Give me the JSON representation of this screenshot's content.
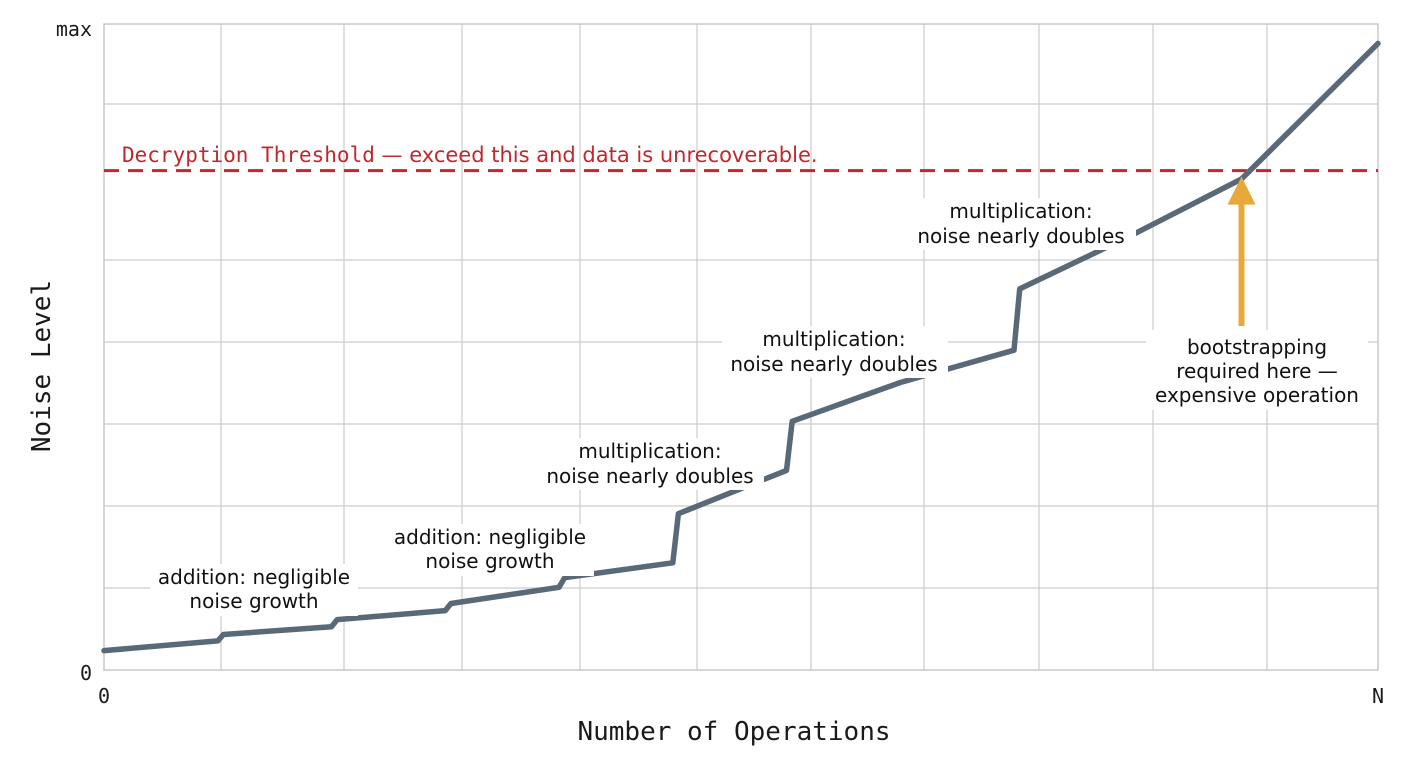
{
  "chart_data": {
    "type": "line",
    "xlabel": "Number of Operations",
    "ylabel": "Noise Level",
    "x_tick_labels": {
      "start": "0",
      "end": "N"
    },
    "y_tick_labels": {
      "bottom": "0",
      "top": "max"
    },
    "xlim": [
      0,
      11.2
    ],
    "ylim": [
      0,
      100
    ],
    "grid": true,
    "series": [
      {
        "color": "#5a6978",
        "points": [
          [
            0,
            3
          ],
          [
            1.0,
            4.5
          ],
          [
            1.05,
            5.5
          ],
          [
            2.0,
            6.7
          ],
          [
            2.05,
            7.8
          ],
          [
            3.0,
            9.2
          ],
          [
            3.05,
            10.3
          ],
          [
            4.0,
            12.8
          ],
          [
            4.05,
            14.3
          ],
          [
            5.0,
            16.6
          ],
          [
            5.05,
            24.2
          ],
          [
            6.0,
            30.9
          ],
          [
            6.05,
            38.5
          ],
          [
            7.0,
            44.5
          ],
          [
            8.0,
            49.5
          ],
          [
            8.05,
            59.0
          ],
          [
            9.0,
            67.0
          ],
          [
            10.0,
            76.0
          ],
          [
            11.2,
            97.0
          ]
        ]
      }
    ],
    "threshold": {
      "value": 77.3,
      "color": "#c0282d",
      "label_prefix": "Decryption Threshold",
      "label_suffix": " — exceed this and data is unrecoverable."
    },
    "annotations": [
      {
        "lines": [
          "addition: negligible",
          "noise growth"
        ]
      },
      {
        "lines": [
          "addition: negligible",
          "noise growth"
        ]
      },
      {
        "lines": [
          "multiplication:",
          "noise nearly doubles"
        ]
      },
      {
        "lines": [
          "multiplication:",
          "noise nearly doubles"
        ]
      },
      {
        "lines": [
          "multiplication:",
          "noise nearly doubles"
        ]
      },
      {
        "lines": [
          "bootstrapping",
          "required here —",
          "expensive operation"
        ],
        "arrow_color": "#e8a83a",
        "arrow_x": 10.0
      }
    ]
  }
}
